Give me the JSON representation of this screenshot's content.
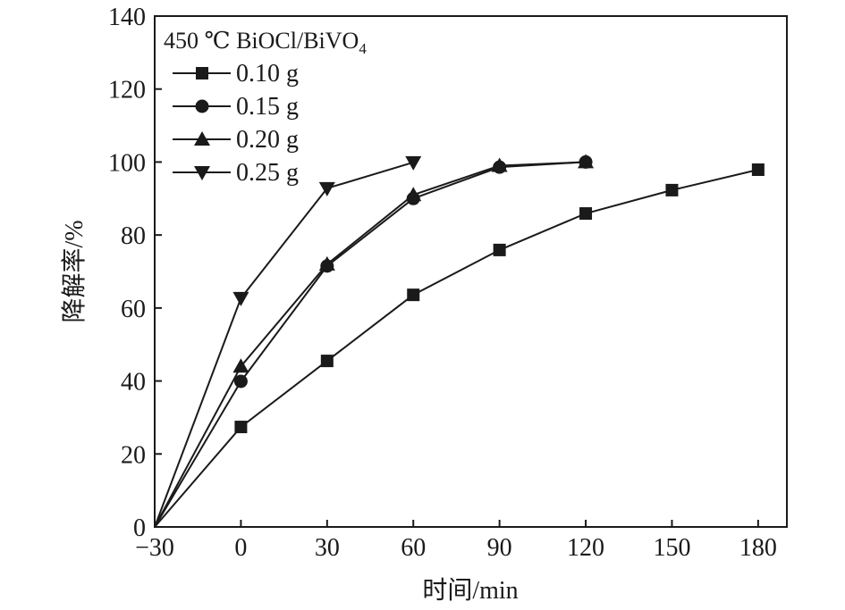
{
  "chart_data": {
    "type": "line",
    "title": "",
    "xlabel": "时间/min",
    "ylabel": "降解率/%",
    "xlim": [
      -30,
      190
    ],
    "ylim": [
      0,
      140
    ],
    "xticks": [
      -30,
      0,
      30,
      60,
      90,
      120,
      150,
      180
    ],
    "xtick_labels": [
      "−30",
      "0",
      "30",
      "60",
      "90",
      "120",
      "150",
      "180"
    ],
    "yticks": [
      0,
      20,
      40,
      60,
      80,
      100,
      120,
      140
    ],
    "ytick_labels": [
      "0",
      "20",
      "40",
      "60",
      "80",
      "100",
      "120",
      "140"
    ],
    "grid": false,
    "legend_title": "450 ℃ BiOCl/BiVO",
    "legend_title_subscript": "4",
    "legend_placement": "top-left",
    "color": "#1a1a1a",
    "series": [
      {
        "name": "0.10 g",
        "marker": "square",
        "x": [
          -30,
          0,
          30,
          60,
          90,
          120,
          150,
          180
        ],
        "y": [
          0,
          27.4,
          45.5,
          63.6,
          75.9,
          85.9,
          92.3,
          97.9
        ]
      },
      {
        "name": "0.15 g",
        "marker": "circle",
        "x": [
          -30,
          0,
          30,
          60,
          90,
          120
        ],
        "y": [
          0,
          39.9,
          71.5,
          90.0,
          98.6,
          100
        ]
      },
      {
        "name": "0.20 g",
        "marker": "triangle-up",
        "x": [
          -30,
          0,
          30,
          60,
          90,
          120
        ],
        "y": [
          0,
          44.0,
          72.0,
          91.0,
          99.0,
          100
        ]
      },
      {
        "name": "0.25 g",
        "marker": "triangle-down",
        "x": [
          -30,
          0,
          30,
          60
        ],
        "y": [
          0,
          62.7,
          92.8,
          99.9
        ]
      }
    ]
  }
}
